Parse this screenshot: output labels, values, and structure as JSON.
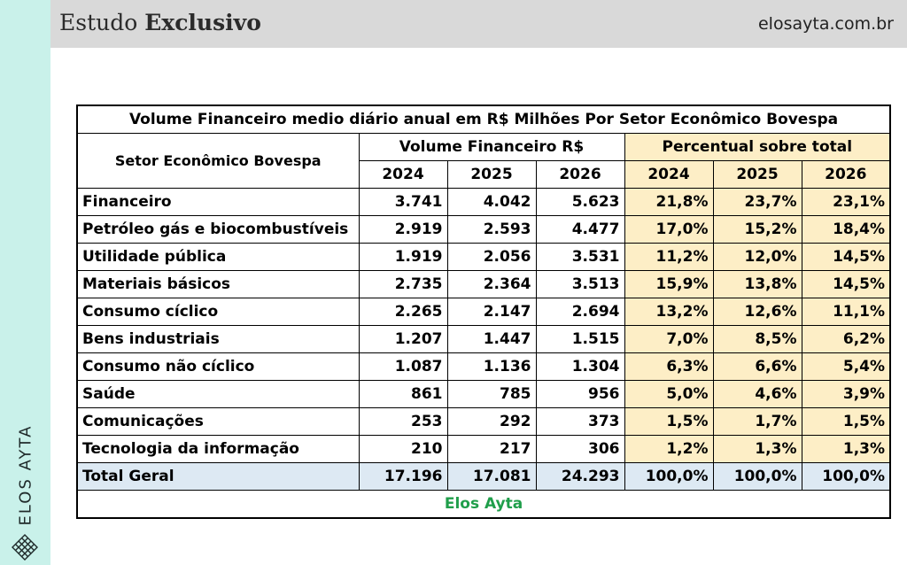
{
  "header": {
    "title_light": "Estudo",
    "title_bold": "Exclusivo",
    "url": "elosayta.com.br"
  },
  "brand": {
    "vertical_text": "ELOS AYTA",
    "logo_icon": "diamond-lattice-icon"
  },
  "table": {
    "title": "Volume Financeiro medio diário anual em R$ Milhões Por Setor Econômico Bovespa",
    "sector_header": "Setor Econômico Bovespa",
    "volume_group": "Volume Financeiro R$",
    "percent_group": "Percentual sobre total",
    "years": [
      "2024",
      "2025",
      "2026"
    ],
    "rows": [
      {
        "sector": "Financeiro",
        "v": [
          "3.741",
          "4.042",
          "5.623"
        ],
        "p": [
          "21,8%",
          "23,7%",
          "23,1%"
        ]
      },
      {
        "sector": "Petróleo gás e biocombustíveis",
        "v": [
          "2.919",
          "2.593",
          "4.477"
        ],
        "p": [
          "17,0%",
          "15,2%",
          "18,4%"
        ]
      },
      {
        "sector": "Utilidade pública",
        "v": [
          "1.919",
          "2.056",
          "3.531"
        ],
        "p": [
          "11,2%",
          "12,0%",
          "14,5%"
        ]
      },
      {
        "sector": "Materiais básicos",
        "v": [
          "2.735",
          "2.364",
          "3.513"
        ],
        "p": [
          "15,9%",
          "13,8%",
          "14,5%"
        ]
      },
      {
        "sector": "Consumo cíclico",
        "v": [
          "2.265",
          "2.147",
          "2.694"
        ],
        "p": [
          "13,2%",
          "12,6%",
          "11,1%"
        ]
      },
      {
        "sector": "Bens industriais",
        "v": [
          "1.207",
          "1.447",
          "1.515"
        ],
        "p": [
          "7,0%",
          "8,5%",
          "6,2%"
        ]
      },
      {
        "sector": "Consumo não cíclico",
        "v": [
          "1.087",
          "1.136",
          "1.304"
        ],
        "p": [
          "6,3%",
          "6,6%",
          "5,4%"
        ]
      },
      {
        "sector": "Saúde",
        "v": [
          "861",
          "785",
          "956"
        ],
        "p": [
          "5,0%",
          "4,6%",
          "3,9%"
        ]
      },
      {
        "sector": "Comunicações",
        "v": [
          "253",
          "292",
          "373"
        ],
        "p": [
          "1,5%",
          "1,7%",
          "1,5%"
        ]
      },
      {
        "sector": "Tecnologia da informação",
        "v": [
          "210",
          "217",
          "306"
        ],
        "p": [
          "1,2%",
          "1,3%",
          "1,3%"
        ]
      }
    ],
    "total": {
      "sector": "Total Geral",
      "v": [
        "17.196",
        "17.081",
        "24.293"
      ],
      "p": [
        "100,0%",
        "100,0%",
        "100,0%"
      ]
    },
    "footer": "Elos Ayta"
  },
  "colors": {
    "side_strip": "#c9f1ea",
    "header_bar": "#d9d9d9",
    "percent_fill": "#fdeec6",
    "total_fill": "#dde9f3",
    "footer_text": "#1f9e4a"
  }
}
